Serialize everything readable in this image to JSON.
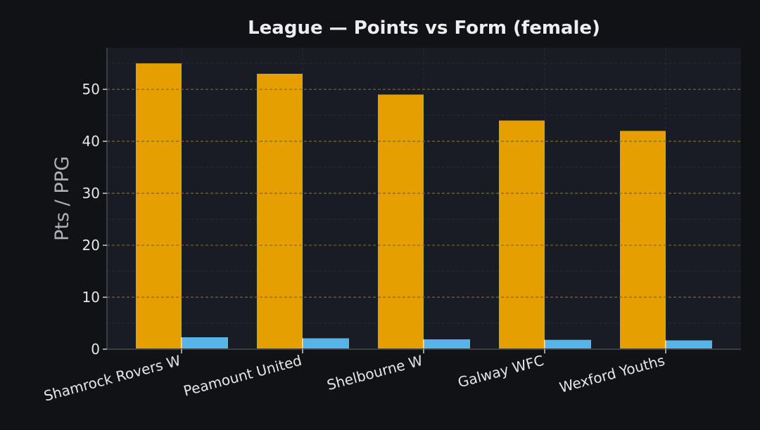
{
  "chart_data": {
    "type": "bar",
    "title": "League — Points vs Form (female)",
    "xlabel": "",
    "ylabel": "Pts / PPG",
    "categories": [
      "Shamrock Rovers W",
      "Peamount United",
      "Shelbourne W",
      "Galway WFC",
      "Wexford Youths"
    ],
    "series": [
      {
        "values": [
          55,
          53,
          49,
          44,
          42
        ],
        "color": "#e69f00"
      },
      {
        "values": [
          2.3,
          2.1,
          1.9,
          1.8,
          1.7
        ],
        "color": "#56b4e9"
      }
    ],
    "ylim": [
      0,
      58
    ],
    "yticks": [
      0,
      10,
      20,
      30,
      40,
      50
    ],
    "grid": true,
    "legend": "none"
  },
  "colors": {
    "background": "#111216",
    "plot_background": "#1a1c23",
    "grid_major": "#7a6630",
    "grid_minor": "#2a2d36",
    "axis": "#3a3d45"
  }
}
